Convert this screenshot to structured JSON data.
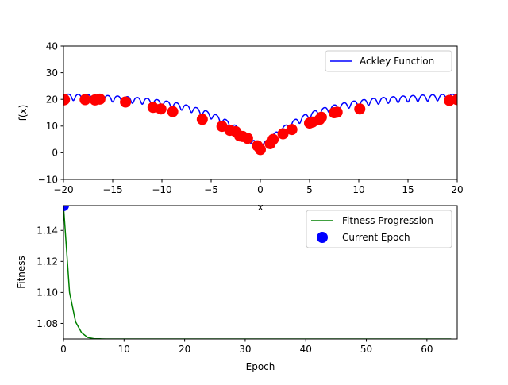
{
  "colors": {
    "ackley": "#0000ff",
    "population": "#ff0000",
    "fitness": "#008000",
    "current": "#0000ff"
  },
  "chart_data": [
    {
      "type": "line",
      "title": "",
      "xlabel": "x",
      "ylabel": "f(x)",
      "xlim": [
        -20,
        20
      ],
      "ylim": [
        -10,
        40
      ],
      "xticks": [
        -20,
        -15,
        -10,
        -5,
        0,
        5,
        10,
        15,
        20
      ],
      "yticks": [
        -10,
        0,
        10,
        20,
        30,
        40
      ],
      "grid": false,
      "legend_position": "top-right",
      "series": [
        {
          "name": "Ackley Function",
          "kind": "line",
          "color": "#0000ff",
          "function": "ackley_1d"
        },
        {
          "name": "",
          "kind": "scatter",
          "color": "#ff0000",
          "x": [
            -20,
            -19.9,
            -17.8,
            -16.8,
            -16.3,
            -13.7,
            -10.9,
            -10.1,
            -8.9,
            -5.9,
            -3.9,
            -3.1,
            -2.5,
            -2.1,
            -1.8,
            -1.3,
            -0.3,
            0,
            1.0,
            1.3,
            2.3,
            3.2,
            5.0,
            5.3,
            6.0,
            6.2,
            7.5,
            7.8,
            10.1,
            19.2,
            20
          ],
          "y": [
            19.8,
            19.9,
            19.9,
            19.8,
            20.1,
            19.0,
            17.0,
            16.4,
            15.4,
            12.5,
            9.9,
            8.4,
            7.9,
            6.3,
            6.1,
            5.4,
            2.6,
            1.2,
            3.4,
            5.0,
            7.1,
            8.7,
            11.1,
            11.5,
            12.4,
            13.3,
            15.0,
            15.2,
            16.4,
            19.6,
            19.9
          ]
        }
      ]
    },
    {
      "type": "line",
      "title": "",
      "xlabel": "Epoch",
      "ylabel": "Fitness",
      "xlim": [
        0,
        65
      ],
      "ylim": [
        1.07,
        1.156
      ],
      "xticks": [
        0,
        10,
        20,
        30,
        40,
        50,
        60
      ],
      "yticks": [
        1.08,
        1.1,
        1.12,
        1.14
      ],
      "ytick_labels": [
        "1.08",
        "1.10",
        "1.12",
        "1.14"
      ],
      "grid": false,
      "legend_position": "top-right",
      "series": [
        {
          "name": "Fitness Progression",
          "kind": "line",
          "color": "#008000",
          "x": [
            0,
            1,
            2,
            3,
            4,
            5,
            6,
            7,
            8,
            9,
            10,
            11,
            12,
            13,
            14,
            15,
            16,
            17,
            18,
            19,
            20,
            21,
            22,
            23,
            24,
            25,
            26,
            27,
            28,
            29,
            30,
            31,
            32,
            33,
            34,
            35,
            36,
            37,
            38,
            39,
            40,
            41,
            42,
            43,
            44,
            45,
            46,
            47,
            48,
            49,
            50,
            51,
            52,
            53,
            54,
            55,
            56,
            57,
            58,
            59,
            60,
            61,
            62,
            63,
            64
          ],
          "y": [
            1.156,
            1.1,
            1.081,
            1.074,
            1.071,
            1.0702,
            1.0701,
            1.07,
            1.07,
            1.07,
            1.07,
            1.07,
            1.07,
            1.07,
            1.07,
            1.07,
            1.07,
            1.07,
            1.07,
            1.07,
            1.07,
            1.07,
            1.07,
            1.07,
            1.07,
            1.07,
            1.07,
            1.07,
            1.07,
            1.07,
            1.07,
            1.07,
            1.07,
            1.07,
            1.07,
            1.07,
            1.07,
            1.07,
            1.07,
            1.07,
            1.07,
            1.07,
            1.07,
            1.07,
            1.07,
            1.07,
            1.07,
            1.07,
            1.07,
            1.07,
            1.07,
            1.07,
            1.07,
            1.07,
            1.07,
            1.07,
            1.07,
            1.07,
            1.07,
            1.07,
            1.07,
            1.07,
            1.07,
            1.07,
            1.07
          ]
        },
        {
          "name": "Current Epoch",
          "kind": "scatter",
          "color": "#0000ff",
          "x": [
            0
          ],
          "y": [
            1.156
          ]
        }
      ]
    }
  ]
}
